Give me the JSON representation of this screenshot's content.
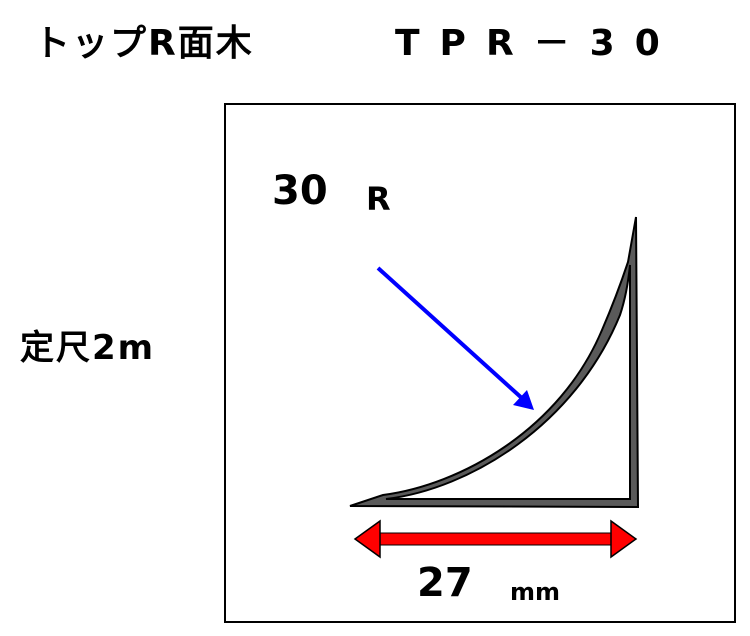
{
  "header": {
    "product_name": "トップR面木",
    "product_code": "TPR－30"
  },
  "spec": {
    "length_label": "定尺2m"
  },
  "diagram": {
    "radius_value": "30",
    "radius_unit": "R",
    "width_value": "27",
    "width_unit": "mm",
    "colors": {
      "profile_fill": "#5a5a5a",
      "profile_stroke": "#000000",
      "radius_arrow": "#0000ff",
      "width_arrow": "#ff0000"
    }
  }
}
